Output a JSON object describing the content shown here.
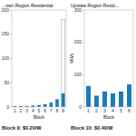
{
  "chart_data": [
    {
      "type": "bar",
      "title": "...own Region Residential",
      "x_label": "Block",
      "categories": [
        "1",
        "2",
        "3",
        "4",
        "5",
        "6",
        "7",
        "8",
        "9"
      ],
      "values": [
        2,
        2,
        2,
        3,
        4,
        6,
        9,
        16,
        28
      ],
      "color": "#1a7bb9",
      "cap_values": [
        null,
        null,
        null,
        null,
        null,
        null,
        null,
        null,
        180
      ],
      "cap_color": "#ffffff",
      "ylim": [
        0,
        200
      ],
      "yticks": [
        0,
        50,
        100,
        150,
        200
      ],
      "annotation": "Block 9: $0.20/W"
    },
    {
      "type": "bar",
      "title": "Upstate Region Resid...",
      "x_label": "Block",
      "y_label": "MWs",
      "categories": [
        "1",
        "2",
        "3",
        "4",
        "5",
        "6"
      ],
      "values": [
        65,
        35,
        48,
        42,
        48,
        70
      ],
      "color": "#1a7bb9",
      "ylim": [
        0,
        300
      ],
      "yticks": [
        0,
        100,
        200,
        300
      ],
      "annotation": "Block 10: $0.40/W"
    }
  ]
}
